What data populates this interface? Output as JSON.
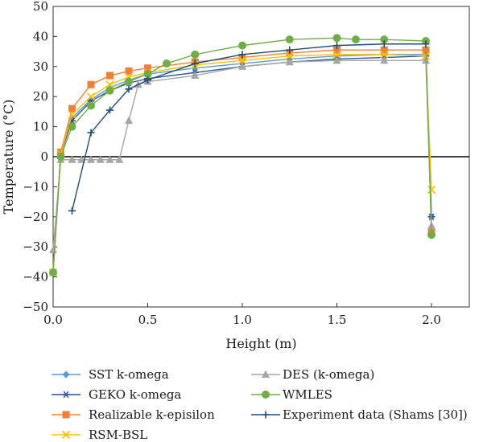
{
  "chart_data": {
    "type": "line",
    "xlabel": "Height (m)",
    "ylabel": "Temperature (°C)",
    "xlim": [
      0.0,
      2.2
    ],
    "ylim": [
      -50,
      50
    ],
    "x_ticks": [
      0.0,
      0.5,
      1.0,
      1.5,
      2.0
    ],
    "x_tick_labels": [
      "0.0",
      "0.5",
      "1.0",
      "1.5",
      "2.0"
    ],
    "y_ticks": [
      -50,
      -40,
      -30,
      -20,
      -10,
      0,
      10,
      20,
      30,
      40,
      50
    ],
    "y_tick_labels": [
      "−50",
      "−40",
      "−30",
      "−20",
      "−10",
      "0",
      "10",
      "20",
      "30",
      "40",
      "50"
    ],
    "grid": false,
    "zero_line": true,
    "legend_position": "bottom",
    "series": [
      {
        "name": "SST k-omega",
        "color": "#5b9bd5",
        "marker": "diamond",
        "x": [
          0.0,
          0.04,
          0.1,
          0.2,
          0.3,
          0.4,
          0.5,
          0.75,
          1.0,
          1.25,
          1.5,
          1.75,
          1.97,
          2.0
        ],
        "y": [
          -38.5,
          1,
          13,
          19,
          23,
          25.5,
          27.5,
          29.5,
          31,
          32.5,
          33.5,
          34,
          34,
          -20
        ]
      },
      {
        "name": "GEKO k-omega",
        "color": "#2f5597",
        "marker": "asterisk",
        "x": [
          0.0,
          0.04,
          0.1,
          0.2,
          0.3,
          0.4,
          0.5,
          0.75,
          1.0,
          1.25,
          1.5,
          1.75,
          1.97,
          2.0
        ],
        "y": [
          -38.5,
          1,
          12,
          18.5,
          22,
          24.5,
          26,
          28,
          30,
          31.5,
          32.5,
          33,
          33.5,
          -20
        ]
      },
      {
        "name": "Realizable k-episilon",
        "color": "#f07f39",
        "marker": "square",
        "x": [
          0.0,
          0.04,
          0.1,
          0.2,
          0.3,
          0.4,
          0.5,
          0.75,
          1.0,
          1.25,
          1.5,
          1.75,
          1.97,
          2.0
        ],
        "y": [
          -38.5,
          1.5,
          16,
          24,
          27,
          28.5,
          29.5,
          31.5,
          33,
          34.5,
          35.5,
          35.5,
          35.5,
          -25
        ]
      },
      {
        "name": "RSM-BSL",
        "color": "#ffc000",
        "marker": "x",
        "x": [
          0.0,
          0.04,
          0.1,
          0.2,
          0.3,
          0.4,
          0.5,
          0.75,
          1.0,
          1.25,
          1.5,
          1.75,
          1.97,
          2.0
        ],
        "y": [
          -38.5,
          1,
          14,
          20,
          24,
          26.5,
          28,
          30.5,
          32,
          33.5,
          34,
          34,
          33.5,
          -11
        ]
      },
      {
        "name": "DES (k-omega)",
        "color": "#a6a6a6",
        "marker": "triangle",
        "x": [
          0.0,
          0.04,
          0.1,
          0.15,
          0.2,
          0.25,
          0.3,
          0.35,
          0.4,
          0.45,
          0.5,
          0.75,
          1.0,
          1.25,
          1.5,
          1.75,
          1.97,
          2.0
        ],
        "y": [
          -31,
          -1,
          -1,
          -1,
          -1,
          -1,
          -1,
          -1,
          12,
          24,
          25,
          27,
          30,
          31.5,
          32,
          32,
          32,
          -23
        ]
      },
      {
        "name": "WMLES",
        "color": "#70ad47",
        "marker": "circle",
        "x": [
          0.0,
          0.04,
          0.1,
          0.2,
          0.3,
          0.4,
          0.5,
          0.6,
          0.75,
          1.0,
          1.25,
          1.5,
          1.6,
          1.75,
          1.97,
          2.0
        ],
        "y": [
          -38.5,
          0,
          10,
          17,
          22,
          25,
          27.5,
          31,
          34,
          37,
          39,
          39.5,
          39,
          39,
          38.5,
          -26
        ]
      },
      {
        "name": "Experiment data (Shams [30])",
        "color": "#1f4e79",
        "marker": "plus",
        "x": [
          0.1,
          0.2,
          0.3,
          0.4,
          0.5,
          0.75,
          1.0,
          1.25,
          1.5,
          1.75,
          1.97
        ],
        "y": [
          -18,
          8,
          15.5,
          22.5,
          25.5,
          31,
          34,
          35.5,
          37,
          37.5,
          37.5
        ]
      }
    ]
  }
}
